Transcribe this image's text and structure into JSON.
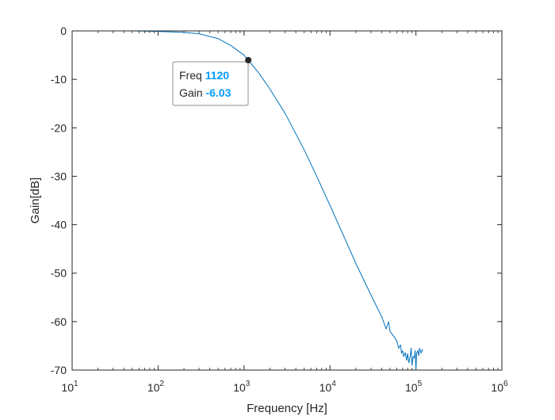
{
  "chart_data": {
    "type": "line",
    "title": "",
    "xlabel": "Frequency [Hz]",
    "ylabel": "Gain[dB]",
    "xscale": "log",
    "xlim": [
      10,
      1000000
    ],
    "ylim": [
      -70,
      0
    ],
    "grid": false,
    "legend": "none",
    "series_color": "#0072BD",
    "x_ticks": [
      {
        "value": 10,
        "base": "10",
        "exp": "1"
      },
      {
        "value": 100,
        "base": "10",
        "exp": "2"
      },
      {
        "value": 1000,
        "base": "10",
        "exp": "3"
      },
      {
        "value": 10000,
        "base": "10",
        "exp": "4"
      },
      {
        "value": 100000,
        "base": "10",
        "exp": "5"
      },
      {
        "value": 1000000,
        "base": "10",
        "exp": "6"
      }
    ],
    "y_ticks": [
      {
        "value": 0,
        "label": "0"
      },
      {
        "value": -10,
        "label": "-10"
      },
      {
        "value": -20,
        "label": "-20"
      },
      {
        "value": -30,
        "label": "-30"
      },
      {
        "value": -40,
        "label": "-40"
      },
      {
        "value": -50,
        "label": "-50"
      },
      {
        "value": -60,
        "label": "-60"
      },
      {
        "value": -70,
        "label": "-70"
      }
    ],
    "series": [
      {
        "x": [
          10,
          50,
          100,
          200,
          300,
          500,
          700,
          1000,
          1120,
          1500,
          2000,
          3000,
          5000,
          7000,
          10000,
          15000,
          20000,
          30000,
          40000,
          45000,
          48000,
          50000,
          55000,
          60000,
          63000,
          66000,
          68000,
          70000,
          72000,
          75000,
          78000,
          80000,
          83000,
          86000,
          88000,
          90000,
          93000,
          96000,
          98000,
          100000,
          102000,
          105000,
          108000,
          110000,
          115000,
          118000,
          120000
        ],
        "y": [
          0,
          0,
          -0.1,
          -0.3,
          -0.6,
          -1.6,
          -3.0,
          -5.0,
          -6.03,
          -8.8,
          -12.0,
          -17.0,
          -24.5,
          -30.0,
          -36.0,
          -43.0,
          -48.0,
          -54.5,
          -59.0,
          -61.5,
          -60.0,
          -62.0,
          -63.0,
          -64.0,
          -65.5,
          -64.8,
          -66.5,
          -66.0,
          -67.2,
          -66.4,
          -68.0,
          -66.6,
          -68.5,
          -67.0,
          -65.5,
          -69.0,
          -67.2,
          -67.5,
          -66.0,
          -70.0,
          -66.5,
          -66.0,
          -67.0,
          -65.5,
          -66.5,
          -65.8,
          -66.0
        ]
      }
    ],
    "annotations": [
      {
        "x": 1120,
        "y": -6.03,
        "key1": "Freq",
        "val1": "1120",
        "key2": "Gain",
        "val2": "-6.03",
        "value_color": "#0099ff"
      }
    ]
  }
}
